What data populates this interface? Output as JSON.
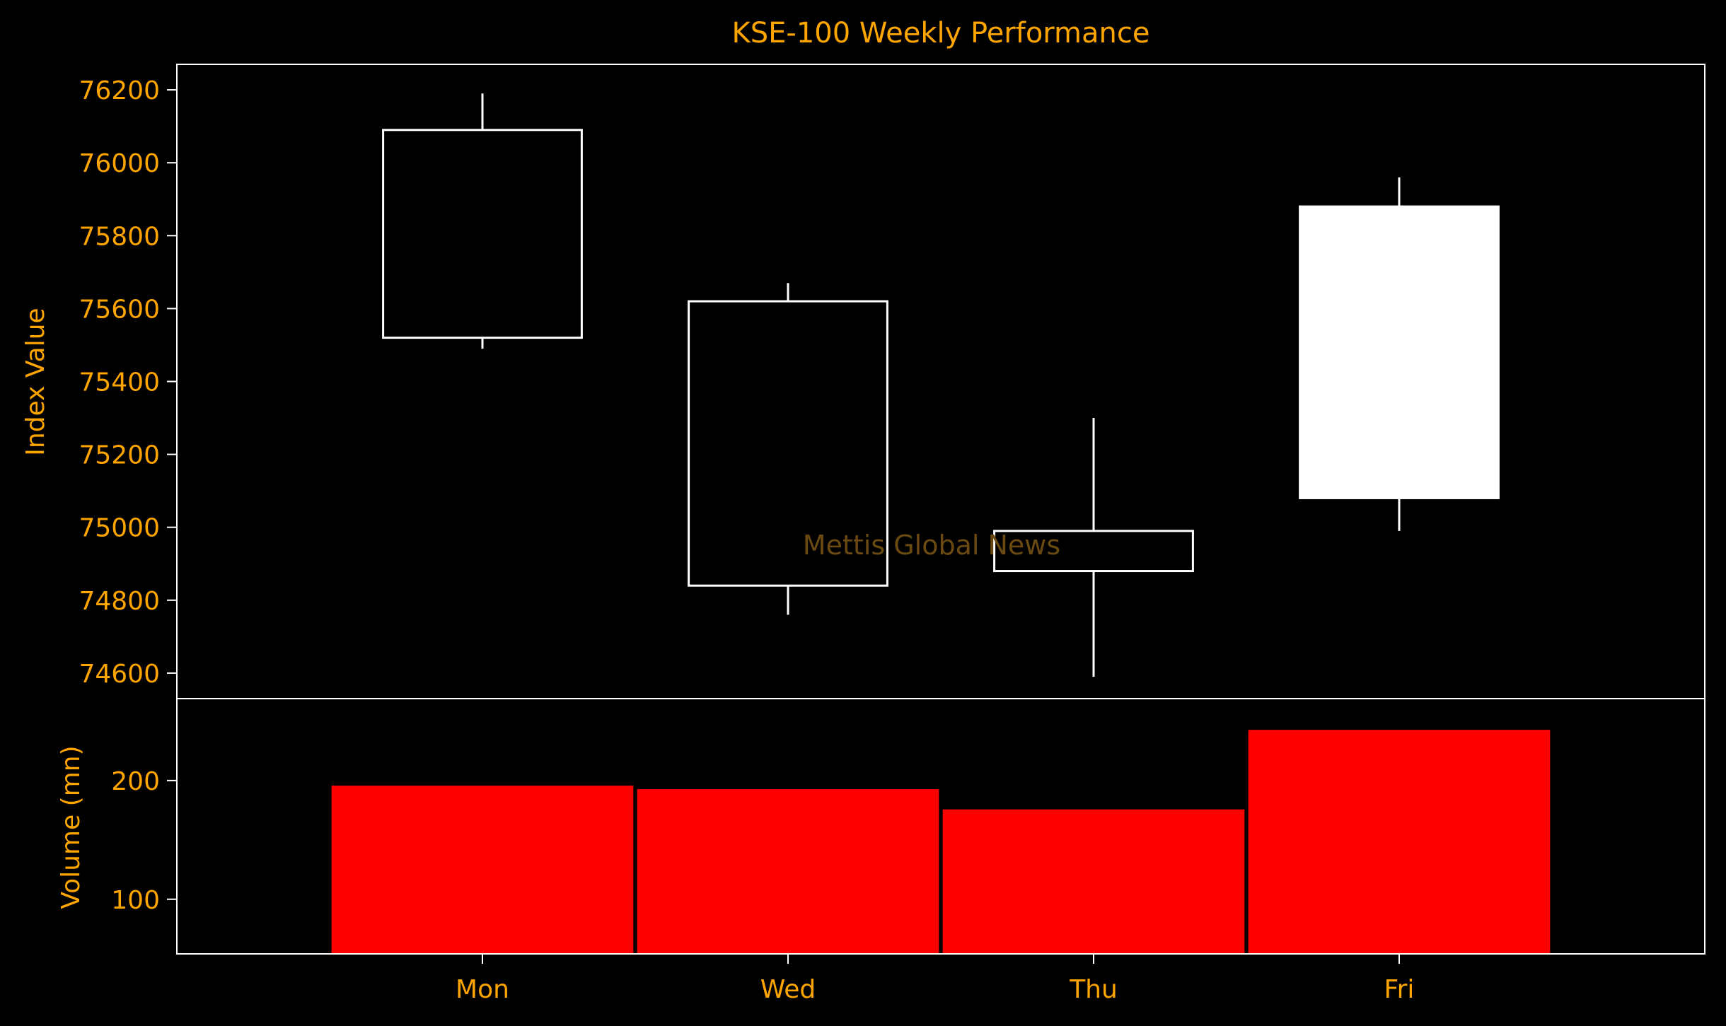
{
  "colors": {
    "background": "#000000",
    "text": "#FFA500",
    "axes": "#FFFFFF",
    "candle_outline": "#FFFFFF",
    "candle_up_fill": "#FFFFFF",
    "candle_down_fill": "#000000",
    "volume_bar": "#FF0000",
    "watermark": "#6B4A12"
  },
  "watermark": "Mettis Global News",
  "chart_data": [
    {
      "type": "candlestick",
      "title": "KSE-100 Weekly Performance",
      "ylabel": "Index Value",
      "ylim": [
        74530,
        76270
      ],
      "yticks": [
        74600,
        74800,
        75000,
        75200,
        75400,
        75600,
        75800,
        76000,
        76200
      ],
      "categories": [
        "Mon",
        "Wed",
        "Thu",
        "Fri"
      ],
      "series": [
        {
          "category": "Mon",
          "open": 76090,
          "high": 76190,
          "low": 75490,
          "close": 75520
        },
        {
          "category": "Wed",
          "open": 75620,
          "high": 75670,
          "low": 74760,
          "close": 74840
        },
        {
          "category": "Thu",
          "open": 74990,
          "high": 75300,
          "low": 74590,
          "close": 74880
        },
        {
          "category": "Fri",
          "open": 75080,
          "high": 75960,
          "low": 74990,
          "close": 75880
        }
      ]
    },
    {
      "type": "bar",
      "ylabel": "Volume (mn)",
      "ylim": [
        54,
        269
      ],
      "yticks": [
        100,
        200
      ],
      "categories": [
        "Mon",
        "Wed",
        "Thu",
        "Fri"
      ],
      "values": [
        196,
        193,
        176,
        243
      ]
    }
  ]
}
